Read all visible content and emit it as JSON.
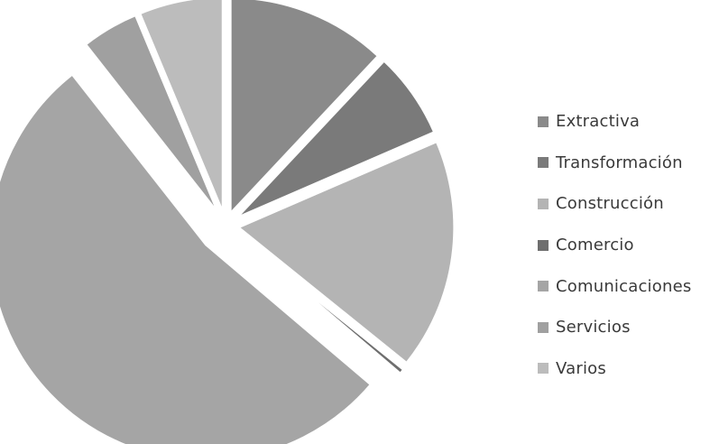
{
  "chart_data": {
    "type": "pie",
    "title": "",
    "exploded": true,
    "legend_position": "right",
    "slices": [
      {
        "label": "Extractiva",
        "value": 12.0,
        "color": "#8a8a8a"
      },
      {
        "label": "Transformación",
        "value": 6.5,
        "color": "#7a7a7a"
      },
      {
        "label": "Construcción",
        "value": 17.3,
        "color": "#b4b4b4"
      },
      {
        "label": "Comercio",
        "value": 0.4,
        "color": "#6e6e6e"
      },
      {
        "label": "Comunicaciones",
        "value": 53.2,
        "color": "#a5a5a5"
      },
      {
        "label": "Servicios",
        "value": 4.3,
        "color": "#a0a0a0"
      },
      {
        "label": "Varios",
        "value": 6.3,
        "color": "#bcbcbc"
      }
    ]
  }
}
